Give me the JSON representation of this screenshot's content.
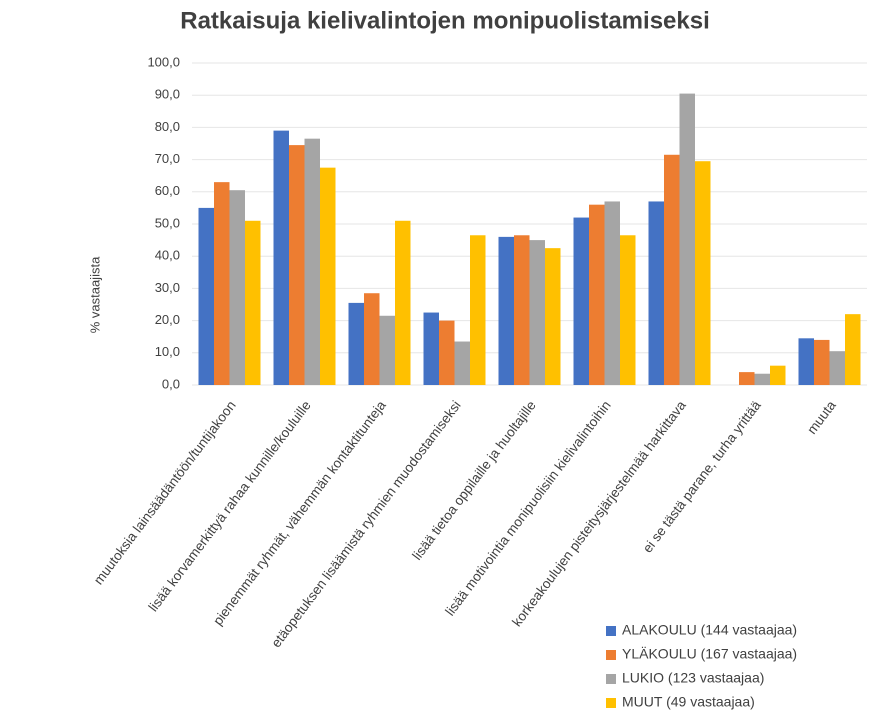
{
  "chart_data": {
    "type": "bar",
    "title": "Ratkaisuja kielivalintojen monipuolistamiseksi",
    "y_label": "% vastaajista",
    "categories": [
      "muutoksia lainsäädäntöön/tuntijakoon",
      "lisää korvamerkittyä rahaa kunnille/kouluille",
      "pienemmät ryhmät, vähemmän kontaktitunteja",
      "etäopetuksen lisäämistä ryhmien muodostamiseksi",
      "lisää tietoa oppilaille ja huoltajille",
      "lisää motivointia monipuolisiin kielivalintoihin",
      "korkeakoulujen pisteitysjärjestelmää harkittava",
      "ei se tästä parane, turha yrittää",
      "muuta"
    ],
    "series": [
      {
        "name": "ALAKOULU (144 vastaajaa)",
        "color": "#4472c4",
        "values": [
          55,
          79,
          25.5,
          22.5,
          46,
          52,
          57,
          null,
          14.5
        ]
      },
      {
        "name": "YLÄKOULU (167 vastaajaa)",
        "color": "#ed7d31",
        "values": [
          63,
          74.5,
          28.5,
          20,
          46.5,
          56,
          71.5,
          4,
          14
        ]
      },
      {
        "name": "LUKIO (123 vastaajaa)",
        "color": "#a5a5a5",
        "values": [
          60.5,
          76.5,
          21.5,
          13.5,
          45,
          57,
          90.5,
          3.5,
          10.5
        ]
      },
      {
        "name": "MUUT (49 vastaajaa)",
        "color": "#ffc000",
        "values": [
          51,
          67.5,
          51,
          46.5,
          42.5,
          46.5,
          69.5,
          6,
          22
        ]
      }
    ],
    "ylim": [
      0,
      100
    ],
    "yticks": [
      {
        "value": 0,
        "label": "0,0"
      },
      {
        "value": 10,
        "label": "10,0"
      },
      {
        "value": 20,
        "label": "20,0"
      },
      {
        "value": 30,
        "label": "30,0"
      },
      {
        "value": 40,
        "label": "40,0"
      },
      {
        "value": 50,
        "label": "50,0"
      },
      {
        "value": 60,
        "label": "60,0"
      },
      {
        "value": 70,
        "label": "70,0"
      },
      {
        "value": 80,
        "label": "80,0"
      },
      {
        "value": 90,
        "label": "90,0"
      },
      {
        "value": 100,
        "label": "100,0"
      }
    ],
    "grid": true,
    "legend": "bottom-right"
  }
}
